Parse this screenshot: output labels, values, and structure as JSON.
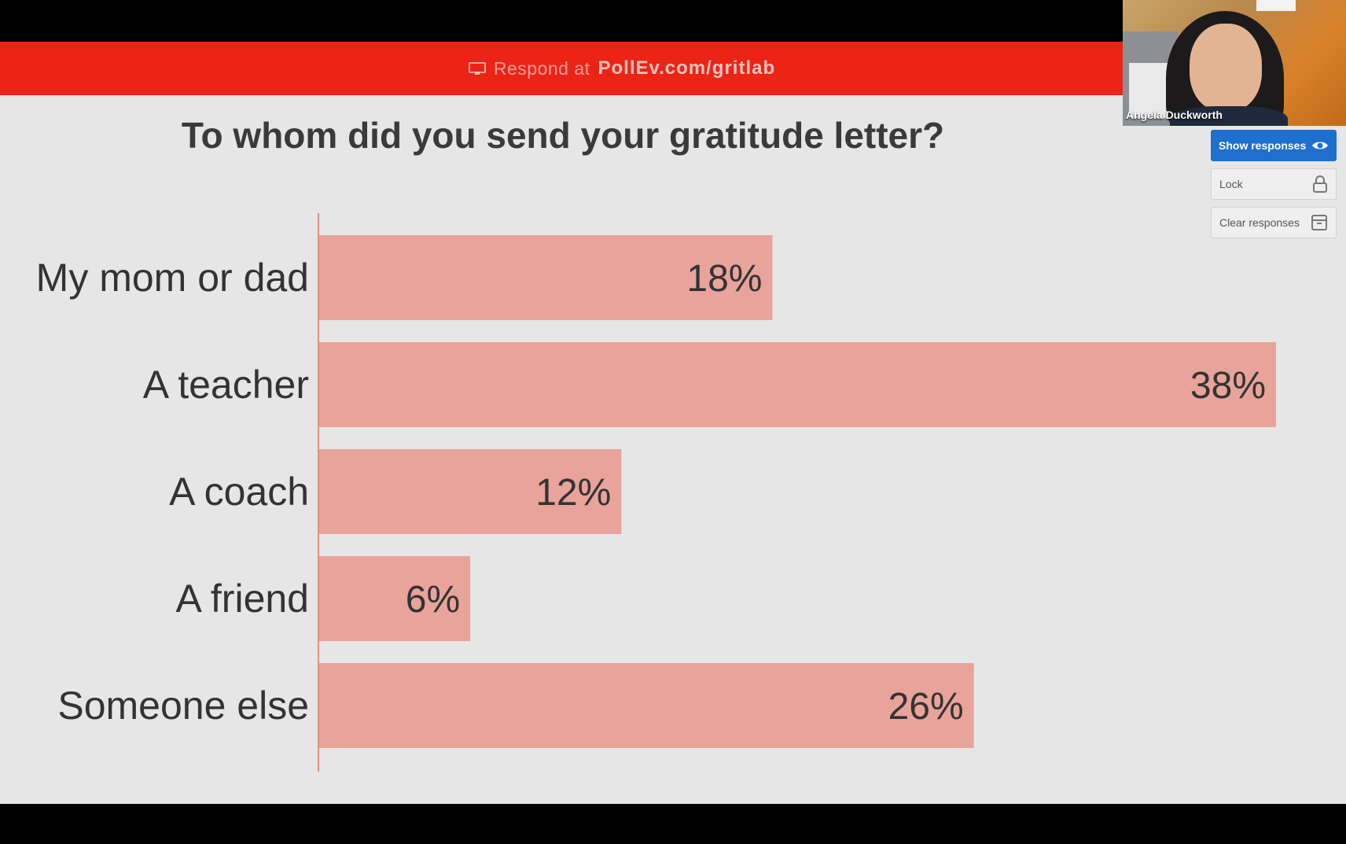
{
  "banner": {
    "prefix": "Respond at",
    "link": "PollEv.com/gritlab"
  },
  "question": "To whom did you send your gratitude letter?",
  "video": {
    "participant_name": "Angela Duckworth"
  },
  "controls": {
    "show_responses": "Show responses",
    "lock": "Lock",
    "clear_responses": "Clear responses"
  },
  "colors": {
    "banner": "#ec2416",
    "bar": "#e8a39a",
    "button_primary": "#1e6fd0"
  },
  "chart_data": {
    "type": "bar",
    "orientation": "horizontal",
    "categories": [
      "My mom or dad",
      "A teacher",
      "A coach",
      "A friend",
      "Someone else"
    ],
    "values": [
      18,
      38,
      12,
      6,
      26
    ],
    "value_labels": [
      "18%",
      "38%",
      "12%",
      "6%",
      "26%"
    ],
    "xlim": [
      0,
      38
    ],
    "grid": false
  }
}
